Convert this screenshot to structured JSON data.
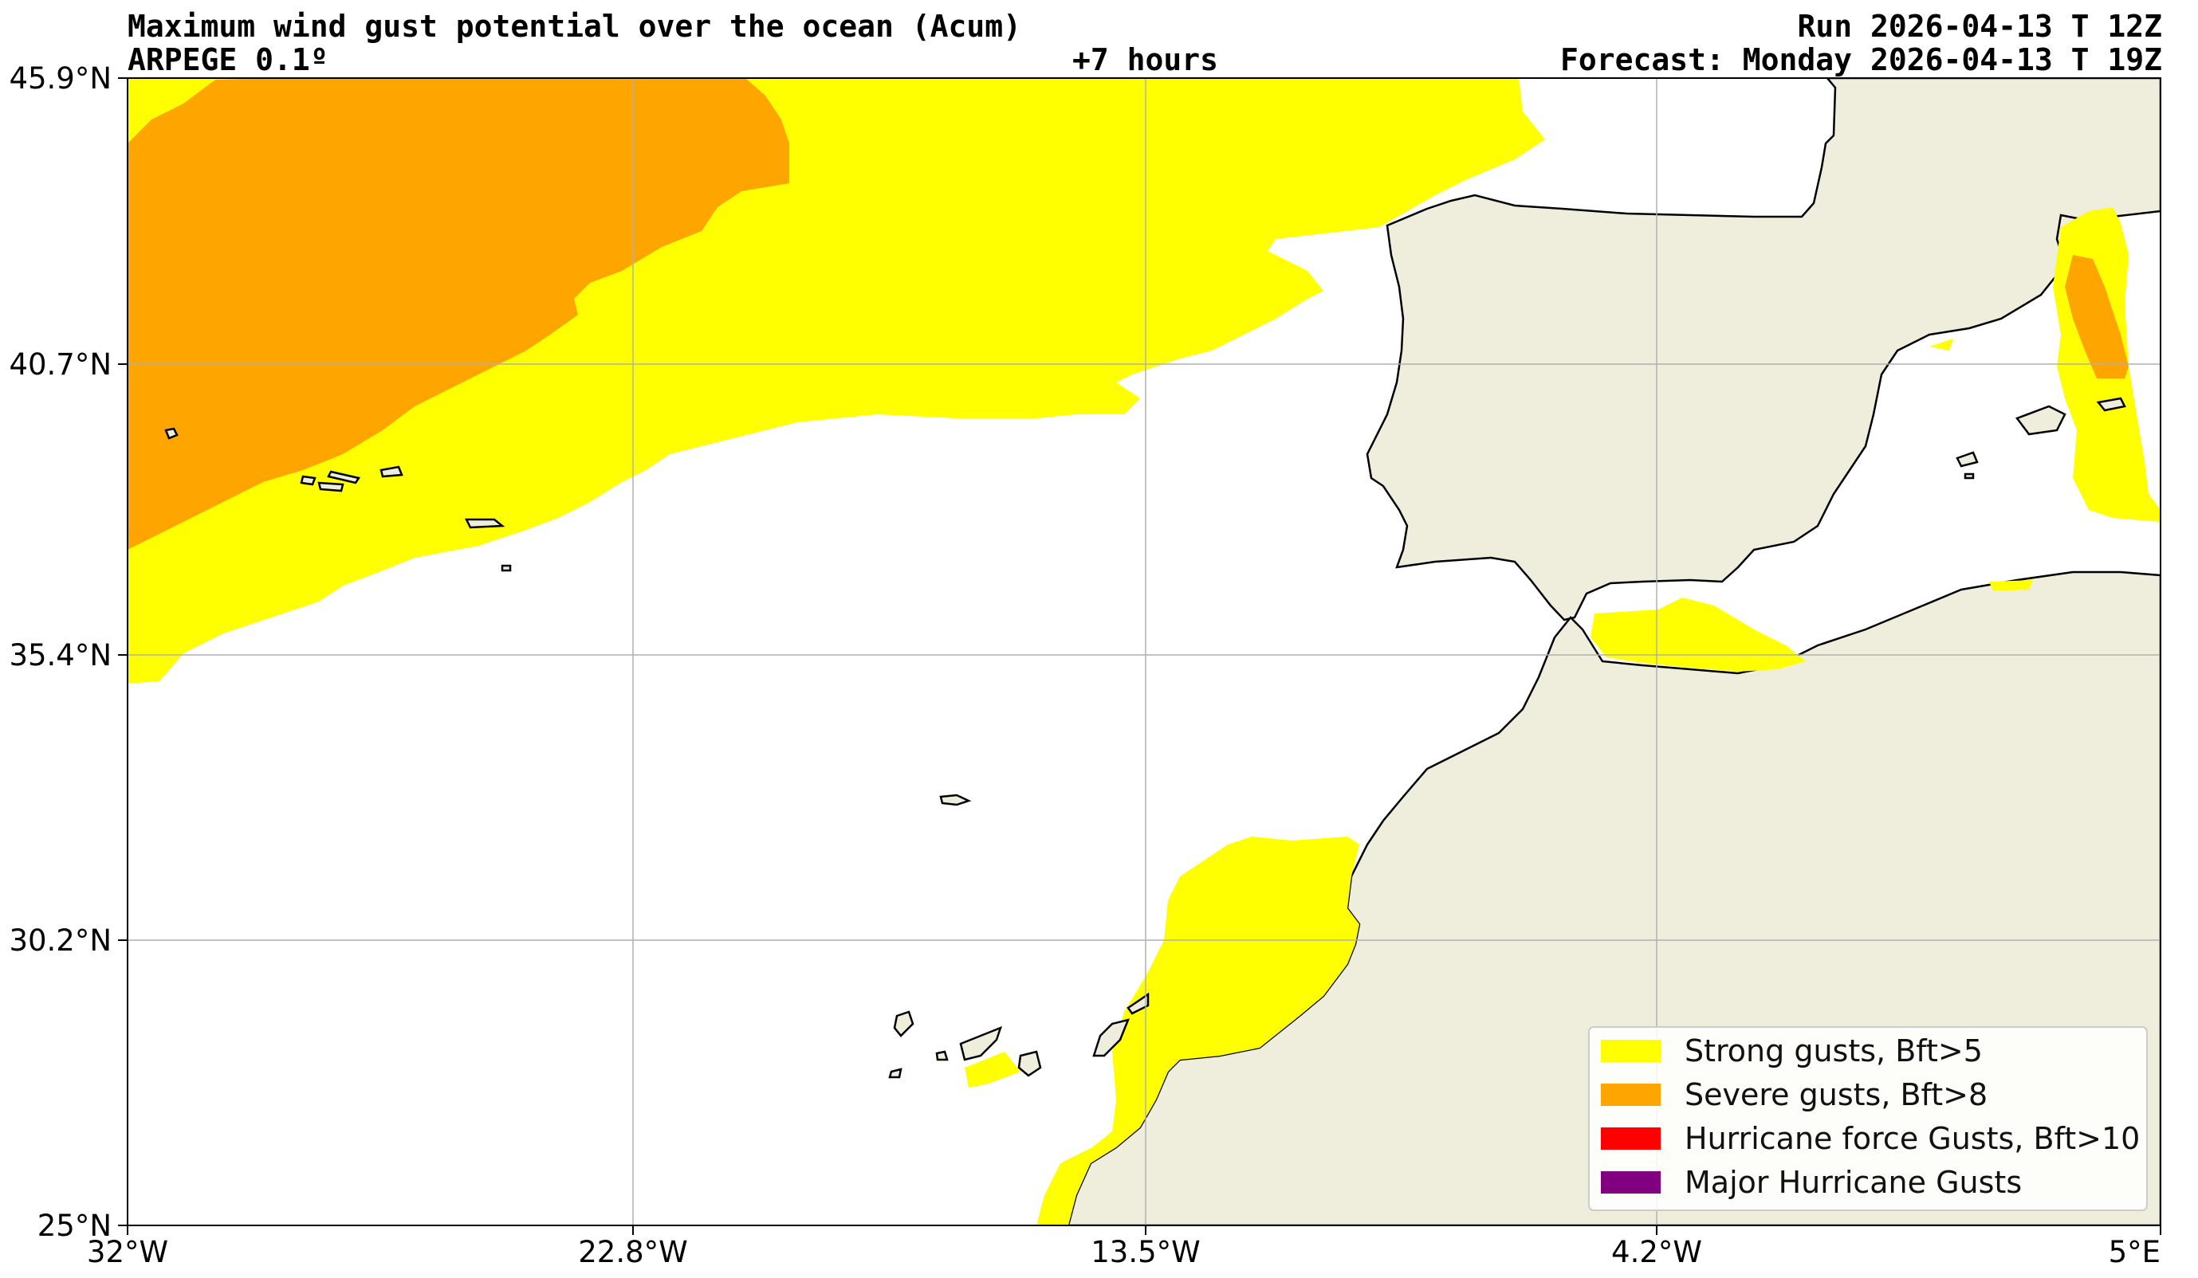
{
  "header": {
    "title": "Maximum wind gust potential over the ocean (Acum)",
    "model": "ARPEGE 0.1º",
    "lead_time": "+7 hours",
    "run": "Run 2026-04-13 T 12Z",
    "forecast": "Forecast: Monday 2026-04-13 T 19Z"
  },
  "map": {
    "lon_range": [
      -32,
      5
    ],
    "lat_range": [
      25,
      45.9
    ],
    "lon_ticks": [
      "32°W",
      "22.8°W",
      "13.5°W",
      "4.2°W",
      "5°E"
    ],
    "lat_ticks": [
      "45.9°N",
      "40.7°N",
      "35.4°N",
      "30.2°N",
      "25°N"
    ],
    "grid": true,
    "colors": {
      "ocean": "#ffffff",
      "land": "#efeddc",
      "strong": "#ffff00",
      "severe": "#ffa500",
      "hurricane": "#ff0000",
      "major": "#800080",
      "grid": "#b0b0b0"
    }
  },
  "legend": {
    "position": "lower-right",
    "items": [
      {
        "label": "Strong gusts, Bft>5",
        "color": "#ffff00"
      },
      {
        "label": "Severe gusts, Bft>8",
        "color": "#ffa500"
      },
      {
        "label": "Hurricane force Gusts, Bft>10",
        "color": "#ff0000"
      },
      {
        "label": "Major Hurricane Gusts",
        "color": "#800080"
      }
    ]
  }
}
